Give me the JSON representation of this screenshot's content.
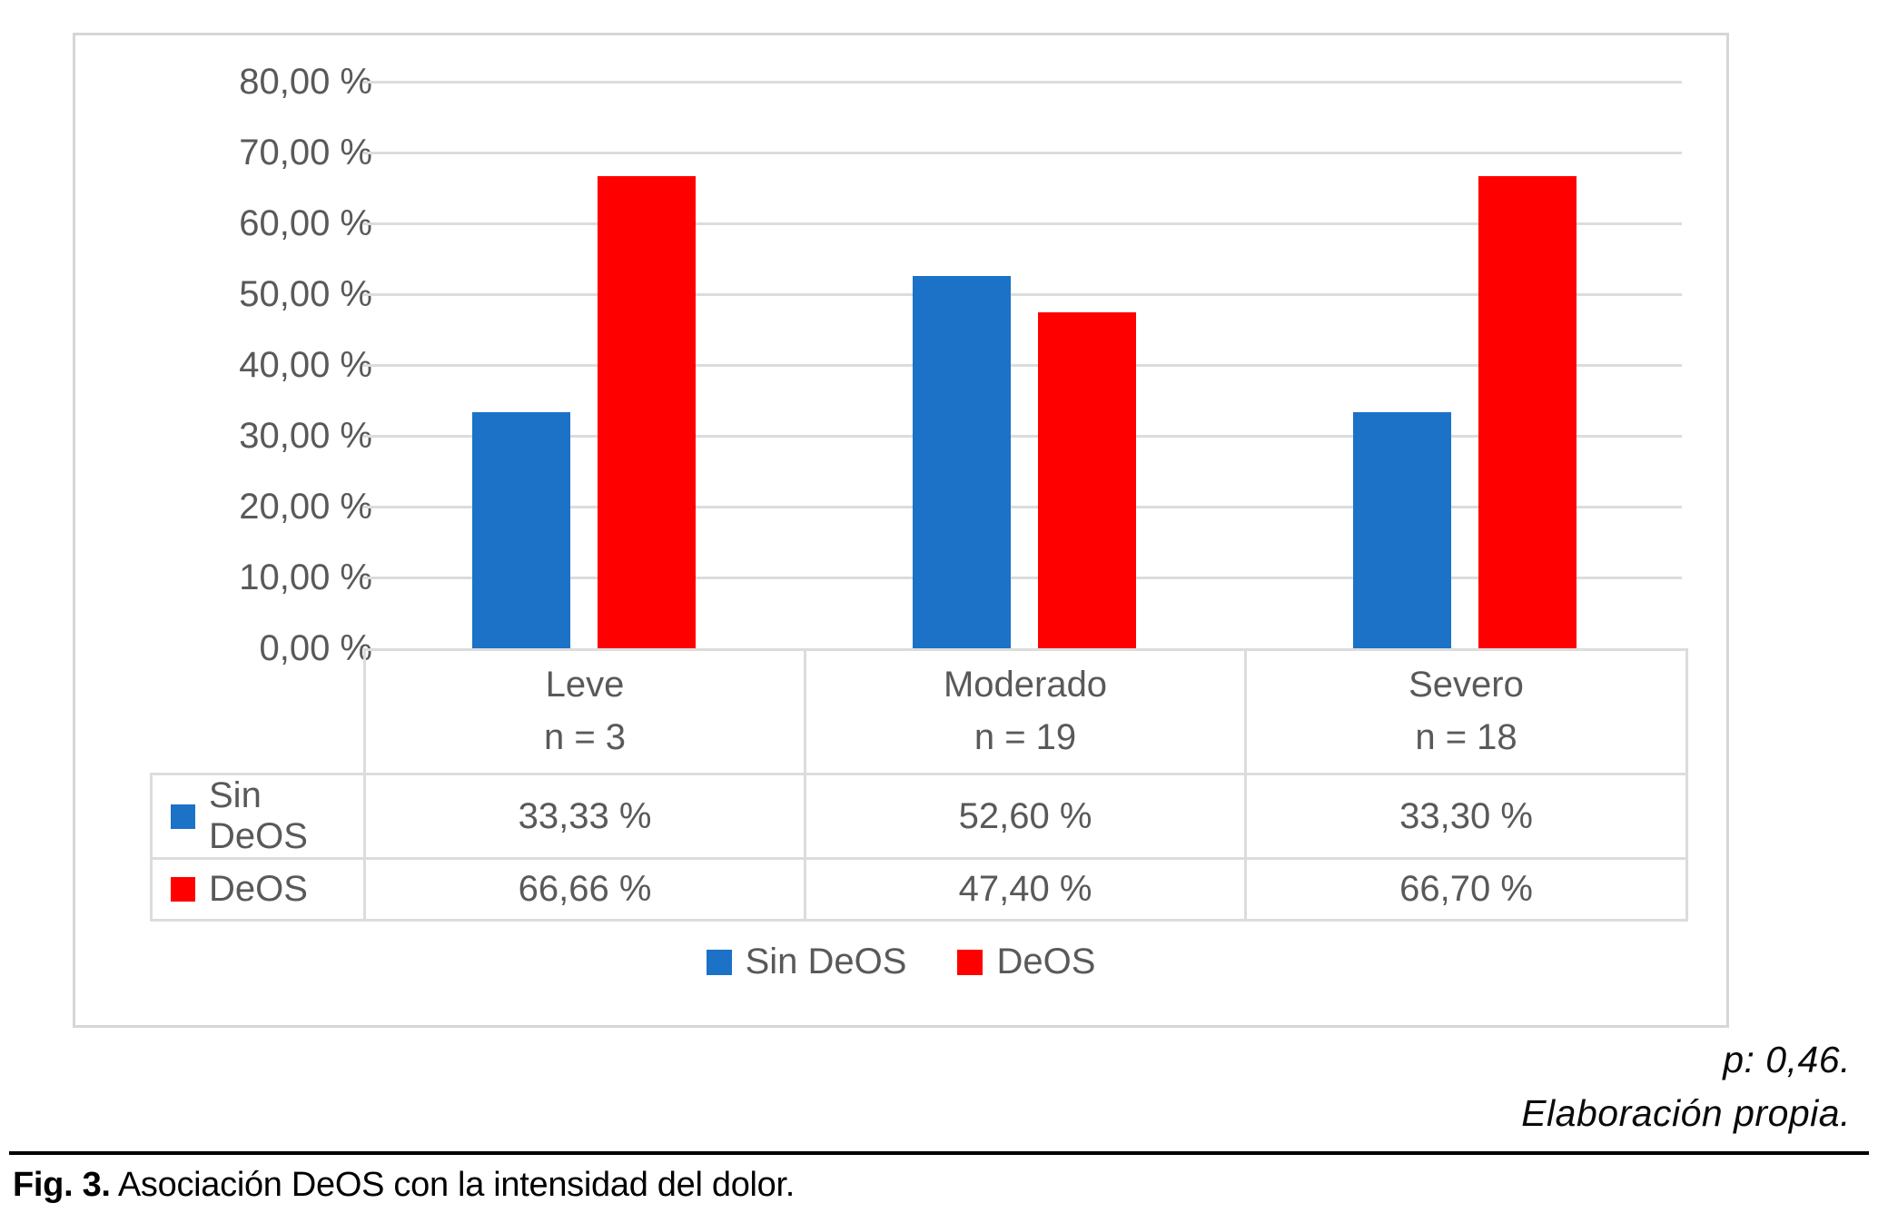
{
  "chart_data": {
    "type": "bar",
    "categories": [
      {
        "label": "Leve",
        "n_label": "n = 3",
        "n": 3
      },
      {
        "label": "Moderado",
        "n_label": "n = 19",
        "n": 19
      },
      {
        "label": "Severo",
        "n_label": "n = 18",
        "n": 18
      }
    ],
    "series": [
      {
        "name": "Sin DeOS",
        "color": "#1b72c6",
        "values": [
          33.33,
          52.6,
          33.3
        ],
        "value_labels": [
          "33,33 %",
          "52,60 %",
          "33,30 %"
        ]
      },
      {
        "name": "DeOS",
        "color": "#ff0000",
        "values": [
          66.66,
          47.4,
          66.7
        ],
        "value_labels": [
          "66,66 %",
          "47,40 %",
          "66,70 %"
        ]
      }
    ],
    "y_axis": {
      "min": 0,
      "max": 80,
      "step": 10,
      "unit": "%",
      "tick_labels": [
        "80,00 %",
        "70,00 %",
        "60,00 %",
        "50,00 %",
        "40,00 %",
        "30,00 %",
        "20,00 %",
        "10,00 %",
        "0,00 %"
      ]
    },
    "legend": {
      "position": "bottom",
      "items": [
        "Sin DeOS",
        "DeOS"
      ]
    },
    "grid": true,
    "data_table_shown": true
  },
  "annotations": {
    "line1": "p: 0,46.",
    "line2": "Elaboración propia."
  },
  "caption": {
    "label": "Fig. 3.",
    "text": " Asociación DeOS con la intensidad del dolor."
  },
  "colors": {
    "series_blue": "#1b72c6",
    "series_red": "#ff0000",
    "grid": "#dcdcdc",
    "axis_text": "#595959",
    "panel_border": "#d6d6d6",
    "caption_text": "#000000"
  }
}
